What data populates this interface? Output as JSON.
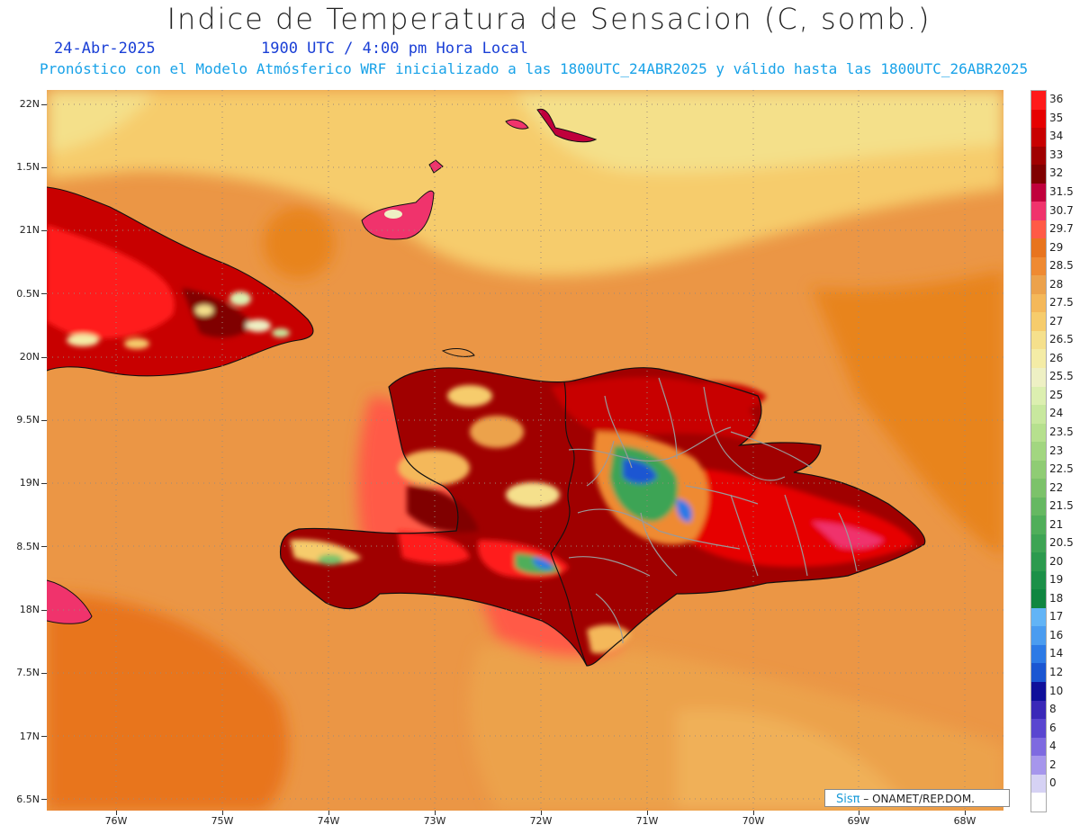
{
  "header": {
    "title": "Indice de Temperatura de Sensacion (C, somb.)",
    "date": "24-Abr-2025",
    "time": "1900 UTC / 4:00 pm Hora Local",
    "model_line": "Pronóstico con el Modelo Atmósferico WRF inicializado a las 1800UTC_24ABR2025 y válido hasta las  1800UTC_26ABR2025"
  },
  "map": {
    "lat_labels": [
      "22N",
      "1.5N",
      "21N",
      "0.5N",
      "20N",
      "9.5N",
      "19N",
      "8.5N",
      "18N",
      "7.5N",
      "17N",
      "6.5N"
    ],
    "lon_labels": [
      "76W",
      "75W",
      "74W",
      "73W",
      "72W",
      "71W",
      "70W",
      "69W",
      "68W"
    ],
    "background_color": "#eb9645",
    "coast_color": "#111111",
    "border_color": "#9a9a9a"
  },
  "legend": {
    "levels": [
      {
        "label": "36",
        "color": "#ff1a1a"
      },
      {
        "label": "35",
        "color": "#e60000"
      },
      {
        "label": "34",
        "color": "#c80000"
      },
      {
        "label": "33",
        "color": "#a00000"
      },
      {
        "label": "32",
        "color": "#800000"
      },
      {
        "label": "31.5",
        "color": "#c0003c"
      },
      {
        "label": "30.7",
        "color": "#f0336c"
      },
      {
        "label": "29.7",
        "color": "#ff5a46"
      },
      {
        "label": "29",
        "color": "#e8741e"
      },
      {
        "label": "28.5",
        "color": "#ef8a32"
      },
      {
        "label": "28",
        "color": "#eca24c"
      },
      {
        "label": "27.5",
        "color": "#f4b85a"
      },
      {
        "label": "27",
        "color": "#f6cc6c"
      },
      {
        "label": "26.5",
        "color": "#f5e08c"
      },
      {
        "label": "26",
        "color": "#f4eca6"
      },
      {
        "label": "25.5",
        "color": "#eef0c4"
      },
      {
        "label": "25",
        "color": "#dcefb0"
      },
      {
        "label": "24",
        "color": "#c8e89e"
      },
      {
        "label": "23.5",
        "color": "#b6e08e"
      },
      {
        "label": "23",
        "color": "#a2d680"
      },
      {
        "label": "22.5",
        "color": "#8fcc74"
      },
      {
        "label": "22",
        "color": "#7cc26a"
      },
      {
        "label": "21.5",
        "color": "#66b862"
      },
      {
        "label": "21",
        "color": "#50ae5a"
      },
      {
        "label": "20.5",
        "color": "#3ea454"
      },
      {
        "label": "20",
        "color": "#2c9a4e"
      },
      {
        "label": "19",
        "color": "#1c9048"
      },
      {
        "label": "18",
        "color": "#108640"
      },
      {
        "label": "17",
        "color": "#62b4f6"
      },
      {
        "label": "16",
        "color": "#4a9cf0"
      },
      {
        "label": "14",
        "color": "#2c7ae6"
      },
      {
        "label": "12",
        "color": "#1a56d2"
      },
      {
        "label": "10",
        "color": "#10109a"
      },
      {
        "label": "8",
        "color": "#3a28b8"
      },
      {
        "label": "6",
        "color": "#5a46d0"
      },
      {
        "label": "4",
        "color": "#7e6ae0"
      },
      {
        "label": "2",
        "color": "#a696ec"
      },
      {
        "label": "0",
        "color": "#d6d2f4"
      },
      {
        "label": "",
        "color": "#ffffff"
      }
    ]
  },
  "credit": {
    "logo": "Sisπ",
    "text": " – ONAMET/REP.DOM."
  }
}
